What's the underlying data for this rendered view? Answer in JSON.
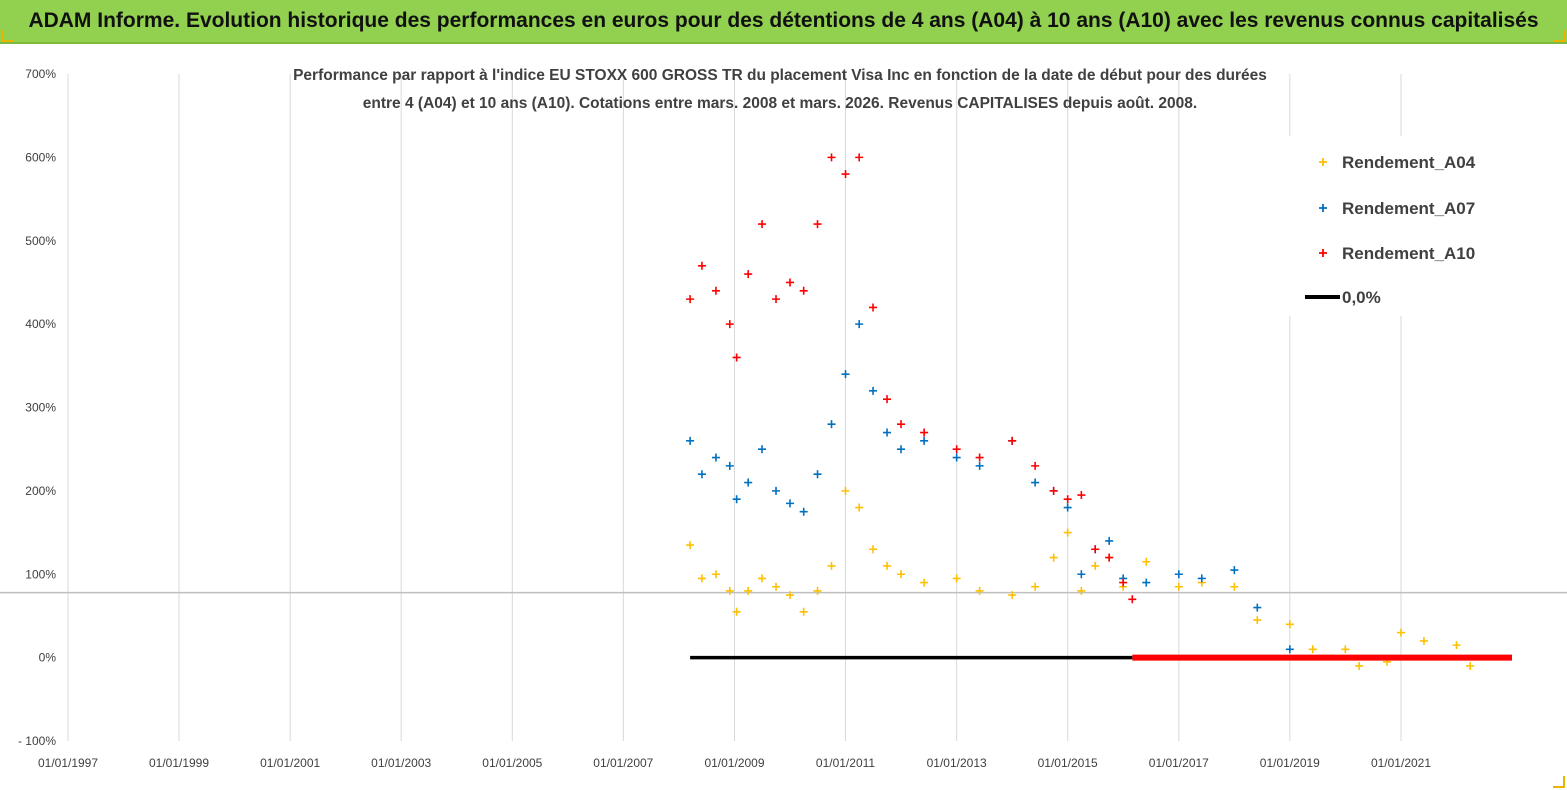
{
  "banner": {
    "title": "ADAM Informe. Evolution historique des performances en euros pour des détentions de 4 ans (A04) à 10 ans (A10) avec les revenus connus capitalisés"
  },
  "colors": {
    "banner": "#92d050",
    "corner": "#e8b400",
    "A04": "#ffc000",
    "A07": "#0070c0",
    "A10": "#ff0000",
    "zero": "#000000",
    "grid": "#d9d9d9"
  },
  "chart_data": {
    "type": "scatter",
    "title_lines": [
      "Performance par rapport à l'indice EU STOXX 600 GROSS TR  du placement Visa Inc en fonction de la date de début pour des durées",
      "entre 4 (A04) et 10 ans (A10). Cotations entre mars. 2008 et mars. 2026. Revenus CAPITALISES depuis août. 2008."
    ],
    "xlabel": "",
    "ylabel": "",
    "x_ticks": [
      "01/01/1997",
      "01/01/1999",
      "01/01/2001",
      "01/01/2003",
      "01/01/2005",
      "01/01/2007",
      "01/01/2009",
      "01/01/2011",
      "01/01/2013",
      "01/01/2015",
      "01/01/2017",
      "01/01/2019",
      "01/01/2021"
    ],
    "y_ticks": [
      "- 100%",
      "0%",
      "100%",
      "200%",
      "300%",
      "400%",
      "500%",
      "600%",
      "700%"
    ],
    "xlim": [
      "1997-01-01",
      "2023-01-01"
    ],
    "ylim": [
      -100,
      700
    ],
    "x_grid": true,
    "y_grid": false,
    "reference_line_y": 78,
    "legend_position": "top-right",
    "series": [
      {
        "name": "Rendement_A04",
        "marker": "+",
        "x": [
          "2008-03-15",
          "2008-06-01",
          "2008-09-01",
          "2008-12-01",
          "2009-01-15",
          "2009-04-01",
          "2009-07-01",
          "2009-10-01",
          "2010-01-01",
          "2010-04-01",
          "2010-07-01",
          "2010-10-01",
          "2011-01-01",
          "2011-04-01",
          "2011-07-01",
          "2011-10-01",
          "2012-01-01",
          "2012-06-01",
          "2013-01-01",
          "2013-06-01",
          "2014-01-01",
          "2014-06-01",
          "2014-10-01",
          "2015-01-01",
          "2015-04-01",
          "2015-07-01",
          "2015-10-01",
          "2016-01-01",
          "2016-06-01",
          "2017-01-01",
          "2017-06-01",
          "2018-01-01",
          "2018-06-01",
          "2019-01-01",
          "2019-06-01",
          "2020-01-01",
          "2020-04-01",
          "2020-10-01",
          "2021-01-01",
          "2021-06-01",
          "2022-01-01",
          "2022-04-01"
        ],
        "y": [
          135,
          95,
          100,
          80,
          55,
          80,
          95,
          85,
          75,
          55,
          80,
          110,
          200,
          180,
          130,
          110,
          100,
          90,
          95,
          80,
          75,
          85,
          120,
          150,
          80,
          110,
          120,
          85,
          115,
          85,
          90,
          85,
          45,
          40,
          10,
          10,
          -10,
          -5,
          30,
          20,
          15,
          -10
        ]
      },
      {
        "name": "Rendement_A07",
        "marker": "+",
        "x": [
          "2008-03-15",
          "2008-06-01",
          "2008-09-01",
          "2008-12-01",
          "2009-01-15",
          "2009-04-01",
          "2009-07-01",
          "2009-10-01",
          "2010-01-01",
          "2010-04-01",
          "2010-07-01",
          "2010-10-01",
          "2011-01-01",
          "2011-04-01",
          "2011-07-01",
          "2011-10-01",
          "2012-01-01",
          "2012-06-01",
          "2013-01-01",
          "2013-06-01",
          "2014-01-01",
          "2014-06-01",
          "2014-10-01",
          "2015-01-01",
          "2015-04-01",
          "2015-07-01",
          "2015-10-01",
          "2016-01-01",
          "2016-06-01",
          "2017-01-01",
          "2017-06-01",
          "2018-01-01",
          "2018-06-01",
          "2019-01-01"
        ],
        "y": [
          260,
          220,
          240,
          230,
          190,
          210,
          250,
          200,
          185,
          175,
          220,
          280,
          340,
          400,
          320,
          270,
          250,
          260,
          240,
          230,
          260,
          210,
          200,
          180,
          100,
          130,
          140,
          95,
          90,
          100,
          95,
          105,
          60,
          10
        ]
      },
      {
        "name": "Rendement_A10",
        "marker": "+",
        "x": [
          "2008-03-15",
          "2008-06-01",
          "2008-09-01",
          "2008-12-01",
          "2009-01-15",
          "2009-04-01",
          "2009-07-01",
          "2009-10-01",
          "2010-01-01",
          "2010-04-01",
          "2010-07-01",
          "2010-10-01",
          "2011-01-01",
          "2011-04-01",
          "2011-07-01",
          "2011-10-01",
          "2012-01-01",
          "2012-06-01",
          "2013-01-01",
          "2013-06-01",
          "2014-01-01",
          "2014-06-01",
          "2014-10-01",
          "2015-01-01",
          "2015-04-01",
          "2015-07-01",
          "2015-10-01",
          "2016-01-01",
          "2016-03-01"
        ],
        "y": [
          430,
          470,
          440,
          400,
          360,
          460,
          520,
          430,
          450,
          440,
          520,
          600,
          580,
          600,
          420,
          310,
          280,
          270,
          250,
          240,
          260,
          230,
          200,
          190,
          195,
          130,
          120,
          90,
          70
        ]
      }
    ],
    "zero_line": {
      "name": "0,0%",
      "x": [
        "2008-03-15",
        "2016-03-01"
      ],
      "y": 0
    },
    "legend": [
      "Rendement_A04",
      "Rendement_A07",
      "Rendement_A10",
      "0,0%"
    ]
  }
}
